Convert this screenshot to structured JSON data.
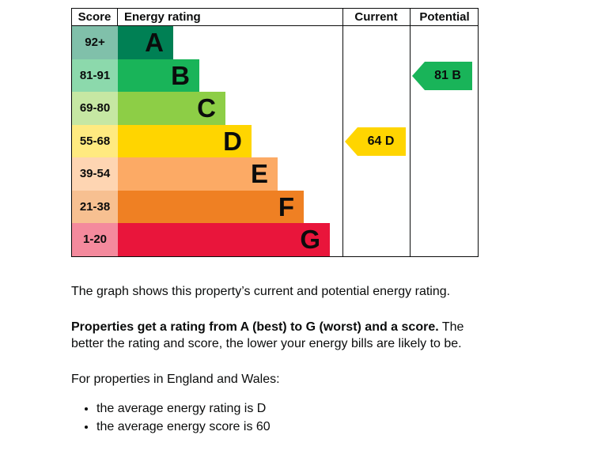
{
  "chart_data": {
    "type": "bar",
    "subtype": "epc-energy-rating-graph",
    "columns": {
      "score": "Score",
      "rating": "Energy rating",
      "current": "Current",
      "potential": "Potential"
    },
    "bands": [
      {
        "score": "92+",
        "letter": "A",
        "color": "#008054",
        "score_color": "#80c0aa"
      },
      {
        "score": "81-91",
        "letter": "B",
        "color": "#19b459",
        "score_color": "#8cd9ac"
      },
      {
        "score": "69-80",
        "letter": "C",
        "color": "#8dce46",
        "score_color": "#c6e7a3"
      },
      {
        "score": "55-68",
        "letter": "D",
        "color": "#ffd500",
        "score_color": "#ffea80"
      },
      {
        "score": "39-54",
        "letter": "E",
        "color": "#fcaa65",
        "score_color": "#fed5b2"
      },
      {
        "score": "21-38",
        "letter": "F",
        "color": "#ef8023",
        "score_color": "#f7c091"
      },
      {
        "score": "1-20",
        "letter": "G",
        "color": "#e9153b",
        "score_color": "#f48a9d"
      }
    ],
    "current": {
      "label": "64 D",
      "value": 64,
      "band": "D",
      "color": "#ffd500"
    },
    "potential": {
      "label": "81 B",
      "value": 81,
      "band": "B",
      "color": "#19b459"
    },
    "legend_position": "none",
    "grid": false
  },
  "text": {
    "intro": "The graph shows this property’s current and potential energy rating.",
    "rating_bold": "Properties get a rating from A (best) to G (worst) and a score.",
    "rating_rest": " The better the rating and score, the lower your energy bills are likely to be.",
    "region_line": "For properties in England and Wales:",
    "bullets": [
      "the average energy rating is D",
      "the average energy score is 60"
    ]
  }
}
